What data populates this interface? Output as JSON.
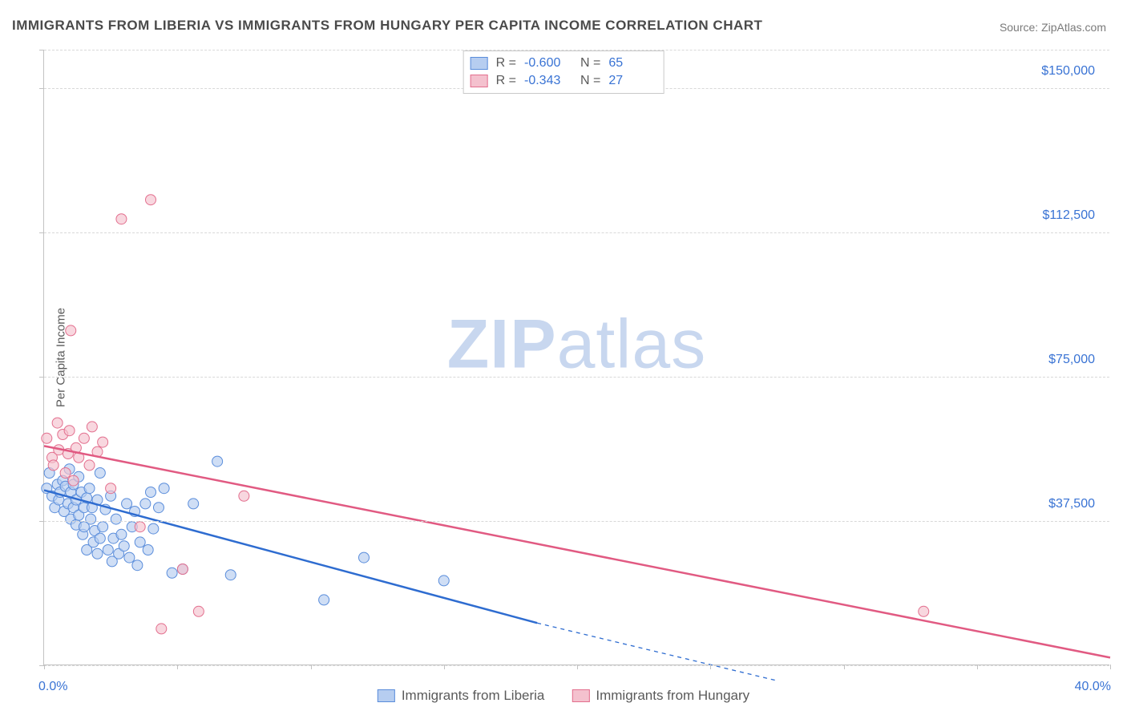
{
  "title": "IMMIGRANTS FROM LIBERIA VS IMMIGRANTS FROM HUNGARY PER CAPITA INCOME CORRELATION CHART",
  "source_label": "Source:",
  "source_name": "ZipAtlas.com",
  "watermark": {
    "bold": "ZIP",
    "rest": "atlas"
  },
  "ylabel": "Per Capita Income",
  "chart": {
    "type": "scatter-correlation",
    "background_color": "#ffffff",
    "grid_color": "#d8d8d8",
    "axis_color": "#c2c2c2",
    "text_color": "#5a5a5a",
    "value_color": "#3973d4",
    "xlim": [
      0,
      40
    ],
    "ylim": [
      0,
      160000
    ],
    "x_tick_positions": [
      0,
      5,
      10,
      15,
      20,
      25,
      30,
      35,
      40
    ],
    "y_labels": [
      {
        "value": 37500,
        "text": "$37,500"
      },
      {
        "value": 75000,
        "text": "$75,000"
      },
      {
        "value": 112500,
        "text": "$112,500"
      },
      {
        "value": 150000,
        "text": "$150,000"
      }
    ],
    "y_gridlines": [
      0,
      37500,
      75000,
      112500,
      150000,
      160000
    ],
    "x_axis_labels": {
      "min": "0.0%",
      "max": "40.0%"
    },
    "marker_radius": 6.5,
    "marker_stroke_width": 1,
    "line_width": 2.5,
    "series": [
      {
        "name": "Immigrants from Liberia",
        "color_fill": "#b6cdf0",
        "color_stroke": "#5a8ddb",
        "color_line": "#2e6cd0",
        "R": "-0.600",
        "N": "65",
        "regression": {
          "start": [
            0,
            45500
          ],
          "solid_end": [
            18.5,
            11000
          ],
          "dashed_end": [
            27.5,
            -4000
          ]
        },
        "points": [
          [
            0.1,
            46000
          ],
          [
            0.2,
            50000
          ],
          [
            0.3,
            44000
          ],
          [
            0.4,
            41000
          ],
          [
            0.5,
            47000
          ],
          [
            0.55,
            43000
          ],
          [
            0.6,
            45000
          ],
          [
            0.7,
            48000
          ],
          [
            0.75,
            40000
          ],
          [
            0.8,
            46500
          ],
          [
            0.9,
            42000
          ],
          [
            0.95,
            51000
          ],
          [
            1.0,
            45000
          ],
          [
            1.0,
            38000
          ],
          [
            1.1,
            41000
          ],
          [
            1.1,
            47000
          ],
          [
            1.2,
            43000
          ],
          [
            1.2,
            36500
          ],
          [
            1.3,
            39000
          ],
          [
            1.3,
            49000
          ],
          [
            1.4,
            45000
          ],
          [
            1.45,
            34000
          ],
          [
            1.5,
            41000
          ],
          [
            1.5,
            36000
          ],
          [
            1.6,
            43500
          ],
          [
            1.6,
            30000
          ],
          [
            1.7,
            46000
          ],
          [
            1.75,
            38000
          ],
          [
            1.8,
            41000
          ],
          [
            1.85,
            32000
          ],
          [
            1.9,
            35000
          ],
          [
            2.0,
            29000
          ],
          [
            2.0,
            43000
          ],
          [
            2.1,
            50000
          ],
          [
            2.1,
            33000
          ],
          [
            2.2,
            36000
          ],
          [
            2.3,
            40500
          ],
          [
            2.4,
            30000
          ],
          [
            2.5,
            44000
          ],
          [
            2.55,
            27000
          ],
          [
            2.6,
            33000
          ],
          [
            2.7,
            38000
          ],
          [
            2.8,
            29000
          ],
          [
            2.9,
            34000
          ],
          [
            3.0,
            31000
          ],
          [
            3.1,
            42000
          ],
          [
            3.2,
            28000
          ],
          [
            3.3,
            36000
          ],
          [
            3.4,
            40000
          ],
          [
            3.5,
            26000
          ],
          [
            3.6,
            32000
          ],
          [
            3.8,
            42000
          ],
          [
            3.9,
            30000
          ],
          [
            4.0,
            45000
          ],
          [
            4.1,
            35500
          ],
          [
            4.3,
            41000
          ],
          [
            4.5,
            46000
          ],
          [
            4.8,
            24000
          ],
          [
            5.2,
            25000
          ],
          [
            5.6,
            42000
          ],
          [
            6.5,
            53000
          ],
          [
            7.0,
            23500
          ],
          [
            10.5,
            17000
          ],
          [
            12.0,
            28000
          ],
          [
            15.0,
            22000
          ]
        ]
      },
      {
        "name": "Immigrants from Hungary",
        "color_fill": "#f4c1ce",
        "color_stroke": "#e36f8e",
        "color_line": "#e15a82",
        "R": "-0.343",
        "N": "27",
        "regression": {
          "start": [
            0,
            57000
          ],
          "solid_end": [
            40,
            2000
          ],
          "dashed_end": null
        },
        "points": [
          [
            0.1,
            59000
          ],
          [
            0.3,
            54000
          ],
          [
            0.35,
            52000
          ],
          [
            0.5,
            63000
          ],
          [
            0.55,
            56000
          ],
          [
            0.7,
            60000
          ],
          [
            0.8,
            50000
          ],
          [
            0.9,
            55000
          ],
          [
            0.95,
            61000
          ],
          [
            1.0,
            87000
          ],
          [
            1.1,
            48000
          ],
          [
            1.2,
            56500
          ],
          [
            1.3,
            54000
          ],
          [
            1.5,
            59000
          ],
          [
            1.7,
            52000
          ],
          [
            1.8,
            62000
          ],
          [
            2.0,
            55500
          ],
          [
            2.2,
            58000
          ],
          [
            2.5,
            46000
          ],
          [
            2.9,
            116000
          ],
          [
            3.6,
            36000
          ],
          [
            4.0,
            121000
          ],
          [
            4.4,
            9500
          ],
          [
            5.2,
            25000
          ],
          [
            5.8,
            14000
          ],
          [
            7.5,
            44000
          ],
          [
            33.0,
            14000
          ]
        ]
      }
    ]
  }
}
